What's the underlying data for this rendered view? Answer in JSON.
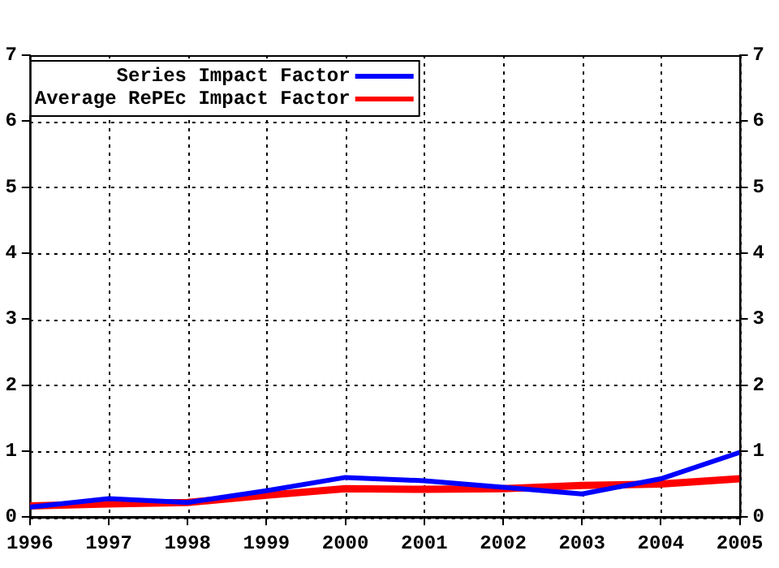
{
  "chart_data": {
    "type": "line",
    "x": [
      1996,
      1997,
      1998,
      1999,
      2000,
      2001,
      2002,
      2003,
      2004,
      2005
    ],
    "xlim": [
      1996,
      2005
    ],
    "xticks": [
      1996,
      1997,
      1998,
      1999,
      2000,
      2001,
      2002,
      2003,
      2004,
      2005
    ],
    "ylim": [
      0,
      7
    ],
    "yticks": [
      0,
      1,
      2,
      3,
      4,
      5,
      6,
      7
    ],
    "y2lim": [
      0,
      7
    ],
    "y2ticks": [
      0,
      1,
      2,
      3,
      4,
      5,
      6,
      7
    ],
    "series": [
      {
        "name": "Series Impact Factor",
        "color": "#0000ff",
        "values": [
          0.15,
          0.28,
          0.22,
          0.4,
          0.6,
          0.55,
          0.45,
          0.35,
          0.58,
          0.98
        ]
      },
      {
        "name": "Average RePEc Impact Factor",
        "color": "#ff0000",
        "values": [
          0.17,
          0.2,
          0.22,
          0.33,
          0.43,
          0.42,
          0.43,
          0.48,
          0.5,
          0.58
        ]
      }
    ],
    "grid": true,
    "line_style": "solid",
    "marker": "none",
    "legend": "top left"
  }
}
